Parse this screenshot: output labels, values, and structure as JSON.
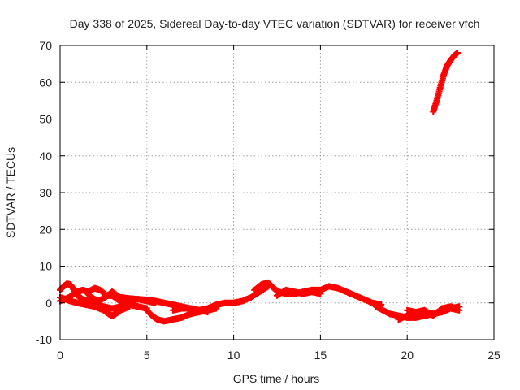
{
  "chart_data": {
    "type": "scatter",
    "title": "Day 338 of 2025, Sidereal Day-to-day VTEC variation (SDTVAR) for receiver vfch",
    "xlabel": "GPS time / hours",
    "ylabel": "SDTVAR / TECUs",
    "xlim": [
      0,
      25
    ],
    "ylim": [
      -10,
      70
    ],
    "xticks": [
      0,
      5,
      10,
      15,
      20,
      25
    ],
    "yticks": [
      -10,
      0,
      10,
      20,
      30,
      40,
      50,
      60,
      70
    ],
    "grid": true,
    "marker": "+",
    "color": "#ff0000",
    "series": [
      {
        "name": "satellite traces",
        "points": [
          [
            0.0,
            3.5
          ],
          [
            0.2,
            4.5
          ],
          [
            0.4,
            5.2
          ],
          [
            0.6,
            5.0
          ],
          [
            0.8,
            3.5
          ],
          [
            1.0,
            2.0
          ],
          [
            1.3,
            1.0
          ],
          [
            1.6,
            0.5
          ],
          [
            2.0,
            0.0
          ],
          [
            2.5,
            -1.0
          ],
          [
            3.0,
            -1.5
          ],
          [
            3.5,
            -1.0
          ],
          [
            4.0,
            0.0
          ],
          [
            0.0,
            1.5
          ],
          [
            0.3,
            1.0
          ],
          [
            0.6,
            0.5
          ],
          [
            1.0,
            0.0
          ],
          [
            1.5,
            -0.5
          ],
          [
            2.0,
            -1.0
          ],
          [
            2.5,
            -2.0
          ],
          [
            2.8,
            -3.0
          ],
          [
            3.0,
            -3.5
          ],
          [
            3.2,
            -3.0
          ],
          [
            3.5,
            -2.0
          ],
          [
            4.0,
            -1.0
          ],
          [
            0.0,
            0.5
          ],
          [
            0.5,
            1.5
          ],
          [
            1.0,
            3.0
          ],
          [
            1.3,
            3.5
          ],
          [
            1.6,
            3.0
          ],
          [
            2.0,
            4.0
          ],
          [
            2.3,
            3.5
          ],
          [
            2.7,
            2.0
          ],
          [
            3.0,
            2.0
          ],
          [
            3.3,
            1.0
          ],
          [
            3.6,
            0.0
          ],
          [
            4.0,
            -0.5
          ],
          [
            4.5,
            -1.0
          ],
          [
            5.0,
            -1.5
          ],
          [
            1.5,
            3.0
          ],
          [
            1.8,
            1.5
          ],
          [
            2.2,
            0.5
          ],
          [
            2.6,
            1.5
          ],
          [
            3.0,
            3.0
          ],
          [
            3.3,
            2.0
          ],
          [
            3.6,
            1.0
          ],
          [
            4.0,
            0.5
          ],
          [
            4.5,
            1.0
          ],
          [
            5.0,
            0.5
          ],
          [
            5.5,
            0.0
          ],
          [
            3.5,
            1.5
          ],
          [
            4.0,
            1.2
          ],
          [
            4.5,
            1.0
          ],
          [
            5.0,
            0.8
          ],
          [
            5.5,
            0.5
          ],
          [
            6.0,
            0.0
          ],
          [
            6.5,
            -0.5
          ],
          [
            7.0,
            -1.0
          ],
          [
            7.5,
            -1.5
          ],
          [
            8.0,
            -2.0
          ],
          [
            8.5,
            -2.5
          ],
          [
            5.0,
            -2.0
          ],
          [
            5.3,
            -3.5
          ],
          [
            5.6,
            -4.5
          ],
          [
            6.0,
            -5.0
          ],
          [
            6.5,
            -4.5
          ],
          [
            7.0,
            -4.0
          ],
          [
            7.5,
            -3.0
          ],
          [
            8.0,
            -2.5
          ],
          [
            8.5,
            -2.0
          ],
          [
            9.0,
            -1.5
          ],
          [
            6.5,
            -2.0
          ],
          [
            7.0,
            -1.5
          ],
          [
            7.5,
            -1.5
          ],
          [
            8.0,
            -2.0
          ],
          [
            8.5,
            -1.5
          ],
          [
            9.0,
            -0.5
          ],
          [
            9.5,
            0.0
          ],
          [
            10.0,
            0.0
          ],
          [
            10.5,
            0.5
          ],
          [
            11.0,
            1.5
          ],
          [
            11.5,
            3.0
          ],
          [
            12.0,
            4.5
          ],
          [
            11.2,
            3.5
          ],
          [
            11.6,
            5.0
          ],
          [
            12.0,
            5.5
          ],
          [
            12.3,
            4.0
          ],
          [
            12.6,
            3.0
          ],
          [
            13.0,
            2.5
          ],
          [
            13.5,
            2.5
          ],
          [
            14.0,
            3.0
          ],
          [
            14.5,
            3.5
          ],
          [
            15.0,
            3.5
          ],
          [
            15.5,
            4.5
          ],
          [
            16.0,
            4.0
          ],
          [
            16.5,
            3.0
          ],
          [
            17.0,
            2.0
          ],
          [
            17.5,
            1.0
          ],
          [
            18.0,
            0.0
          ],
          [
            18.5,
            -0.5
          ],
          [
            12.5,
            2.0
          ],
          [
            13.0,
            3.5
          ],
          [
            13.5,
            3.0
          ],
          [
            14.0,
            2.5
          ],
          [
            14.5,
            3.0
          ],
          [
            15.0,
            2.5
          ],
          [
            18.2,
            -1.0
          ],
          [
            18.6,
            -2.0
          ],
          [
            19.0,
            -3.0
          ],
          [
            19.5,
            -3.5
          ],
          [
            20.0,
            -4.0
          ],
          [
            20.5,
            -4.0
          ],
          [
            21.0,
            -3.5
          ],
          [
            21.5,
            -3.0
          ],
          [
            22.0,
            -2.0
          ],
          [
            22.5,
            -1.5
          ],
          [
            23.0,
            -1.0
          ],
          [
            19.5,
            -4.5
          ],
          [
            20.0,
            -3.5
          ],
          [
            20.5,
            -3.0
          ],
          [
            21.0,
            -2.5
          ],
          [
            21.5,
            -3.0
          ],
          [
            22.0,
            -2.5
          ],
          [
            22.5,
            -1.5
          ],
          [
            23.0,
            -2.0
          ],
          [
            20.0,
            -2.0
          ],
          [
            20.5,
            -2.5
          ],
          [
            21.0,
            -2.0
          ],
          [
            21.5,
            -3.5
          ],
          [
            22.0,
            -1.5
          ],
          [
            22.5,
            -1.0
          ],
          [
            22.8,
            -1.5
          ],
          [
            21.5,
            52.0
          ],
          [
            21.7,
            55.0
          ],
          [
            21.9,
            58.5
          ],
          [
            22.1,
            62.0
          ],
          [
            22.3,
            64.5
          ],
          [
            22.5,
            66.0
          ],
          [
            22.7,
            67.2
          ],
          [
            22.9,
            68.0
          ]
        ]
      }
    ]
  }
}
